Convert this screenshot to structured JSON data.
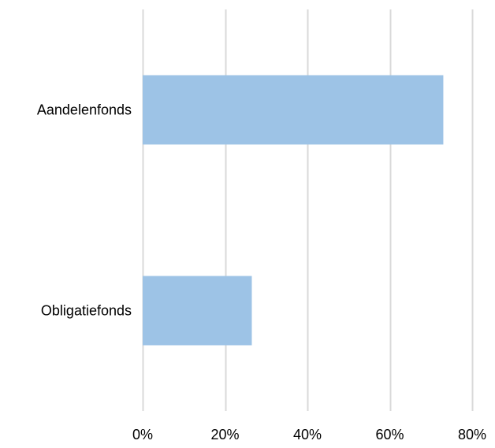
{
  "chart_data": {
    "type": "bar",
    "orientation": "horizontal",
    "categories": [
      "Aandelenfonds",
      "Obligatiefonds"
    ],
    "values": [
      73,
      26.5
    ],
    "xlim": [
      0,
      80
    ],
    "x_ticks": [
      0,
      20,
      40,
      60,
      80
    ],
    "x_tick_labels": [
      "0%",
      "20%",
      "40%",
      "60%",
      "80%"
    ],
    "grid": "vertical",
    "legend": "none",
    "colors": {
      "bar": "#9DC3E6",
      "grid": "#D9D9D9",
      "text": "#000000"
    }
  }
}
